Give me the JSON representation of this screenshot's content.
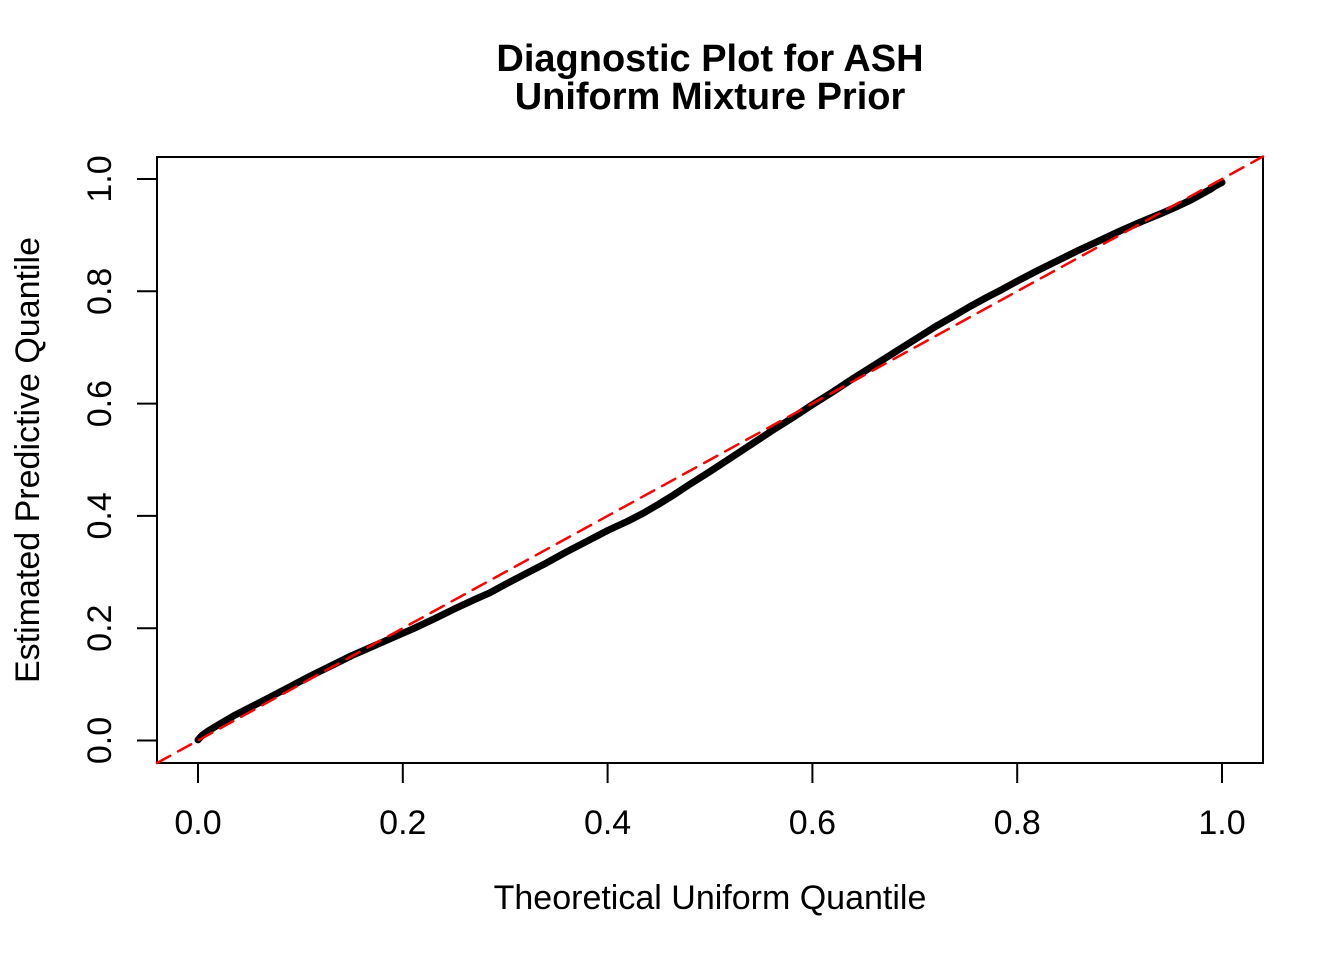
{
  "title": {
    "line1": "Diagnostic Plot for ASH",
    "line2": "Uniform Mixture Prior"
  },
  "axes": {
    "x": {
      "label": "Theoretical Uniform Quantile",
      "ticks": [
        0.0,
        0.2,
        0.4,
        0.6,
        0.8,
        1.0
      ],
      "tick_label_format": "one_decimal",
      "range": [
        -0.04,
        1.04
      ]
    },
    "y": {
      "label": "Estimated Predictive Quantile",
      "ticks": [
        0.0,
        0.2,
        0.4,
        0.6,
        0.8,
        1.0
      ],
      "tick_label_format": "one_decimal",
      "range": [
        -0.04,
        1.04
      ]
    }
  },
  "colors": {
    "background": "#FFFFFF",
    "curve": "#000000",
    "reference_line": "#FF0000",
    "axis": "#000000",
    "text": "#000000"
  },
  "chart_data": {
    "type": "line",
    "title": "Diagnostic Plot for ASH\nUniform Mixture Prior",
    "xlabel": "Theoretical Uniform Quantile",
    "ylabel": "Estimated Predictive Quantile",
    "xlim": [
      -0.04,
      1.04
    ],
    "ylim": [
      -0.04,
      1.04
    ],
    "grid": false,
    "legend": "none",
    "series": [
      {
        "name": "estimated-predictive-quantiles",
        "style": {
          "color": "#000000",
          "width": 7,
          "dash": "solid"
        },
        "points": [
          [
            0.0,
            0.001
          ],
          [
            0.004,
            0.009
          ],
          [
            0.01,
            0.017
          ],
          [
            0.02,
            0.028
          ],
          [
            0.035,
            0.044
          ],
          [
            0.05,
            0.058
          ],
          [
            0.07,
            0.077
          ],
          [
            0.09,
            0.096
          ],
          [
            0.11,
            0.115
          ],
          [
            0.13,
            0.133
          ],
          [
            0.15,
            0.151
          ],
          [
            0.17,
            0.167
          ],
          [
            0.19,
            0.183
          ],
          [
            0.21,
            0.199
          ],
          [
            0.23,
            0.216
          ],
          [
            0.25,
            0.234
          ],
          [
            0.27,
            0.251
          ],
          [
            0.285,
            0.263
          ],
          [
            0.3,
            0.278
          ],
          [
            0.32,
            0.297
          ],
          [
            0.34,
            0.316
          ],
          [
            0.36,
            0.336
          ],
          [
            0.38,
            0.355
          ],
          [
            0.4,
            0.374
          ],
          [
            0.42,
            0.391
          ],
          [
            0.435,
            0.405
          ],
          [
            0.45,
            0.421
          ],
          [
            0.465,
            0.438
          ],
          [
            0.48,
            0.456
          ],
          [
            0.5,
            0.479
          ],
          [
            0.52,
            0.503
          ],
          [
            0.54,
            0.527
          ],
          [
            0.56,
            0.551
          ],
          [
            0.58,
            0.574
          ],
          [
            0.6,
            0.598
          ],
          [
            0.62,
            0.621
          ],
          [
            0.64,
            0.645
          ],
          [
            0.66,
            0.668
          ],
          [
            0.68,
            0.691
          ],
          [
            0.7,
            0.714
          ],
          [
            0.72,
            0.737
          ],
          [
            0.74,
            0.758
          ],
          [
            0.755,
            0.774
          ],
          [
            0.77,
            0.789
          ],
          [
            0.785,
            0.803
          ],
          [
            0.8,
            0.818
          ],
          [
            0.82,
            0.837
          ],
          [
            0.84,
            0.855
          ],
          [
            0.86,
            0.873
          ],
          [
            0.88,
            0.89
          ],
          [
            0.9,
            0.907
          ],
          [
            0.92,
            0.923
          ],
          [
            0.94,
            0.938
          ],
          [
            0.955,
            0.95
          ],
          [
            0.97,
            0.963
          ],
          [
            0.98,
            0.973
          ],
          [
            0.988,
            0.981
          ],
          [
            0.993,
            0.987
          ],
          [
            0.997,
            0.991
          ],
          [
            1.0,
            0.994
          ]
        ]
      },
      {
        "name": "reference-diagonal",
        "style": {
          "color": "#FF0000",
          "width": 2.5,
          "dash": "15 9"
        },
        "points": [
          [
            -0.04,
            -0.04
          ],
          [
            1.04,
            1.04
          ]
        ]
      }
    ]
  }
}
